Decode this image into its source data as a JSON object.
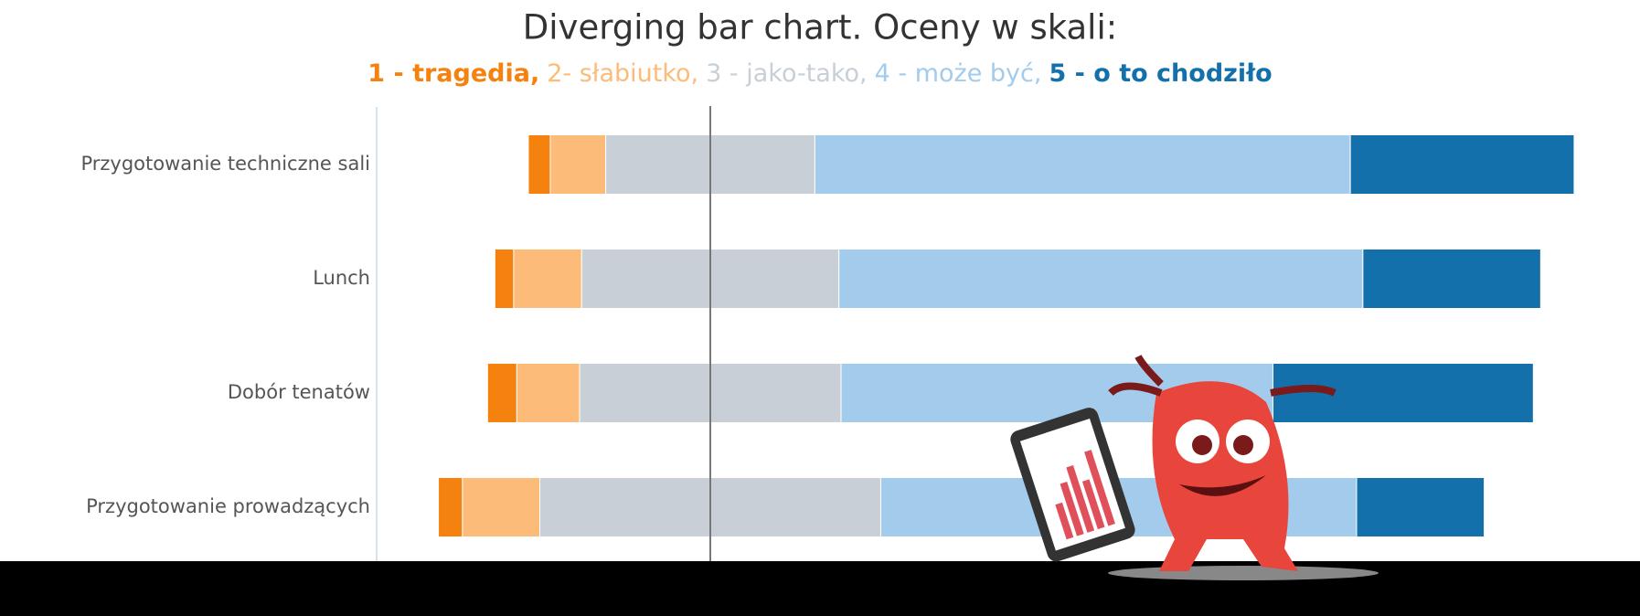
{
  "chart_data": {
    "type": "diverging_bar",
    "title": "Diverging bar chart. Oceny w skali:",
    "categories": [
      "Przygotowanie techniczne sali",
      "Lunch",
      "Dobór tenatów",
      "Przygotowanie prowadzących"
    ],
    "series": [
      {
        "name": "1 - tragedia,",
        "color": "#f5820f",
        "values": [
          2.1,
          1.8,
          2.8,
          2.3
        ]
      },
      {
        "name": "2- słabiutko,",
        "color": "#fdbb7a",
        "values": [
          5.3,
          6.5,
          6.0,
          7.4
        ]
      },
      {
        "name": "3 - jako-tako,",
        "color": "#c8cfd6",
        "values": [
          20.0,
          24.6,
          25.0,
          32.6
        ]
      },
      {
        "name": "4 - może być,",
        "color": "#a3cbeb",
        "values": [
          51.2,
          50.1,
          41.3,
          45.5
        ]
      },
      {
        "name": "5 - o to chodziło",
        "color": "#1370ab",
        "values": [
          21.4,
          17.0,
          24.9,
          12.2
        ]
      }
    ]
  }
}
